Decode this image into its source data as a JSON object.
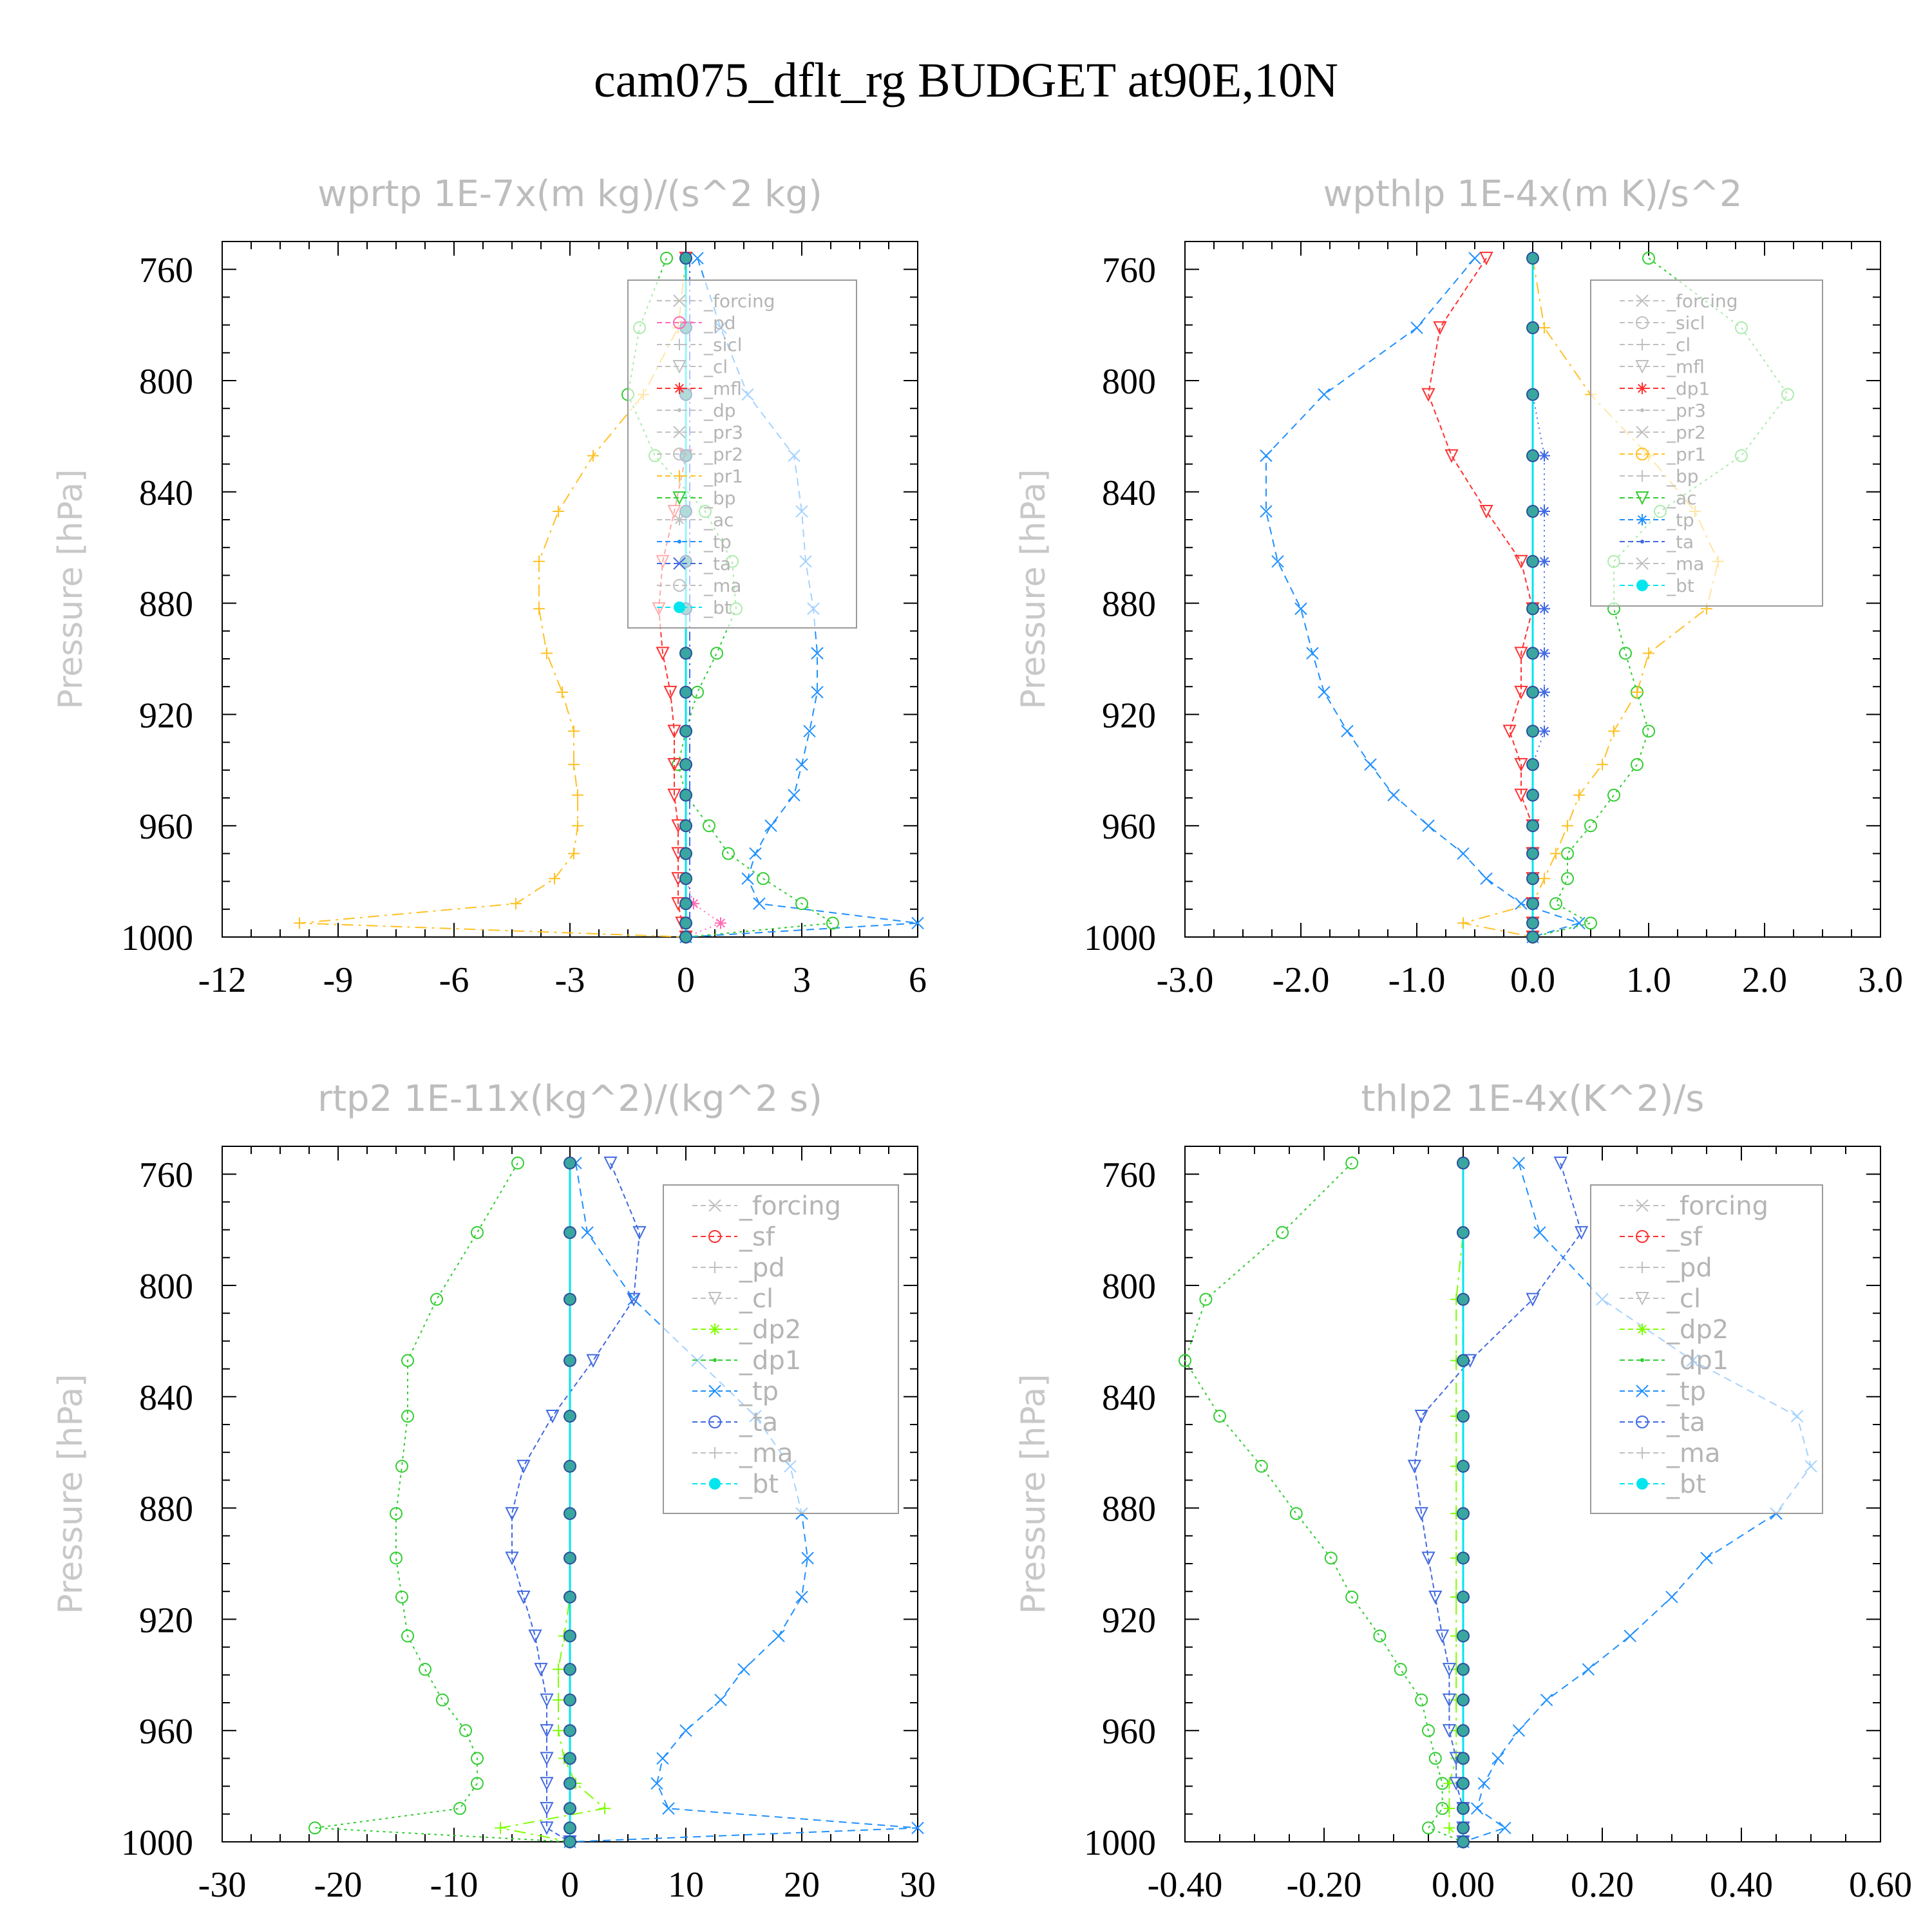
{
  "figure_title": "cam075_dflt_rg  BUDGET at90E,10N",
  "ylabel": "Pressure [hPa]",
  "legend_marker_colors": {
    "bt": "#00e5ee"
  },
  "panels": [
    {
      "title": "wprtp  1E-7x(m kg)/(s^2 kg)",
      "xticks": [
        "-12",
        "-9",
        "-6",
        "-3",
        "0",
        "3",
        "6"
      ],
      "xlim": [
        -12,
        6
      ],
      "legend": [
        "_forcing",
        "_pd",
        "_sicl",
        "_cl",
        "_mfl",
        "_dp",
        "_pr3",
        "_pr2",
        "_pr1",
        "_bp",
        "_ac",
        "_tp",
        "_ta",
        "_ma",
        "_bt"
      ]
    },
    {
      "title": "wpthlp  1E-4x(m K)/s^2",
      "xticks": [
        "-3.0",
        "-2.0",
        "-1.0",
        "0.0",
        "1.0",
        "2.0",
        "3.0"
      ],
      "xlim": [
        -3,
        3
      ],
      "legend": [
        "_forcing",
        "_sicl",
        "_cl",
        "_mfl",
        "_dp1",
        "_pr3",
        "_pr2",
        "_pr1",
        "_bp",
        "_ac",
        "_tp",
        "_ta",
        "_ma",
        "_bt"
      ]
    },
    {
      "title": "rtp2  1E-11x(kg^2)/(kg^2 s)",
      "xticks": [
        "-30",
        "-20",
        "-10",
        "0",
        "10",
        "20",
        "30"
      ],
      "xlim": [
        -30,
        30
      ],
      "legend": [
        "_forcing",
        "_sf",
        "_pd",
        "_cl",
        "_dp2",
        "_dp1",
        "_tp",
        "_ta",
        "_ma",
        "_bt"
      ]
    },
    {
      "title": "thlp2  1E-4x(K^2)/s",
      "xticks": [
        "-0.40",
        "-0.20",
        "0.00",
        "0.20",
        "0.40",
        "0.60"
      ],
      "xlim": [
        -0.4,
        0.6
      ],
      "legend": [
        "_forcing",
        "_sf",
        "_pd",
        "_cl",
        "_dp2",
        "_dp1",
        "_tp",
        "_ta",
        "_ma",
        "_bt"
      ]
    }
  ],
  "chart_data": [
    {
      "type": "line",
      "title": "wprtp  1E-7x(m kg)/(s^2 kg)",
      "ylabel": "Pressure [hPa]",
      "ylim": [
        1000,
        750
      ],
      "xlim": [
        -12,
        6
      ],
      "y_ticks": [
        760,
        800,
        840,
        880,
        920,
        960,
        1000
      ],
      "y": [
        756,
        781,
        805,
        827,
        847,
        865,
        882,
        898,
        912,
        926,
        938,
        949,
        960,
        970,
        979,
        988,
        995,
        1000
      ],
      "series": [
        {
          "name": "_tp",
          "color": "#1e90ff",
          "values": [
            0.3,
            0.9,
            1.6,
            2.8,
            3.0,
            3.1,
            3.3,
            3.4,
            3.4,
            3.2,
            3.0,
            2.8,
            2.2,
            1.8,
            1.6,
            1.9,
            6.0,
            0.0
          ]
        },
        {
          "name": "_bp",
          "color": "#32cd32",
          "values": [
            -0.5,
            -1.2,
            -1.5,
            -0.8,
            0.5,
            1.2,
            1.3,
            0.8,
            0.3,
            0.0,
            -0.2,
            0.0,
            0.6,
            1.1,
            2.0,
            3.0,
            3.8,
            0.0
          ]
        },
        {
          "name": "_pr1",
          "color": "#ffc125",
          "values": [
            0.0,
            -0.2,
            -1.1,
            -2.4,
            -3.3,
            -3.8,
            -3.8,
            -3.6,
            -3.2,
            -2.9,
            -2.9,
            -2.8,
            -2.8,
            -2.9,
            -3.4,
            -4.4,
            -10.0,
            0.0
          ]
        },
        {
          "name": "_mfl",
          "color": "#ff3030",
          "values": [
            0.0,
            0.0,
            0.0,
            0.0,
            -0.3,
            -0.6,
            -0.7,
            -0.6,
            -0.4,
            -0.3,
            -0.3,
            -0.3,
            -0.2,
            -0.2,
            -0.2,
            -0.2,
            -0.1,
            0.0
          ]
        },
        {
          "name": "_pd",
          "color": "#ff69b4",
          "values": [
            0.0,
            0.0,
            0.0,
            0.0,
            0.0,
            0.0,
            0.0,
            0.0,
            0.0,
            0.0,
            0.0,
            0.0,
            0.0,
            0.0,
            0.0,
            0.2,
            0.9,
            0.0
          ]
        },
        {
          "name": "_ta",
          "color": "#4169e1",
          "values": [
            0.1,
            0.1,
            0.1,
            0.1,
            0.1,
            0.1,
            0.1,
            0.1,
            0.1,
            0.1,
            0.1,
            0.1,
            0.1,
            0.1,
            0.1,
            0.1,
            0.1,
            0.0
          ]
        },
        {
          "name": "_bt",
          "color": "#00e5ee",
          "values": [
            0,
            0,
            0,
            0,
            0,
            0,
            0,
            0,
            0,
            0,
            0,
            0,
            0,
            0,
            0,
            0,
            0,
            0
          ]
        }
      ]
    },
    {
      "type": "line",
      "title": "wpthlp  1E-4x(m K)/s^2",
      "ylabel": "Pressure [hPa]",
      "ylim": [
        1000,
        750
      ],
      "xlim": [
        -3,
        3
      ],
      "y_ticks": [
        760,
        800,
        840,
        880,
        920,
        960,
        1000
      ],
      "y": [
        756,
        781,
        805,
        827,
        847,
        865,
        882,
        898,
        912,
        926,
        938,
        949,
        960,
        970,
        979,
        988,
        995,
        1000
      ],
      "series": [
        {
          "name": "_tp",
          "color": "#1e90ff",
          "values": [
            -0.5,
            -1.0,
            -1.8,
            -2.3,
            -2.3,
            -2.2,
            -2.0,
            -1.9,
            -1.8,
            -1.6,
            -1.4,
            -1.2,
            -0.9,
            -0.6,
            -0.4,
            -0.1,
            0.4,
            0.0
          ]
        },
        {
          "name": "_ac",
          "color": "#32cd32",
          "values": [
            1.0,
            1.8,
            2.2,
            1.8,
            1.1,
            0.7,
            0.7,
            0.8,
            0.9,
            1.0,
            0.9,
            0.7,
            0.5,
            0.3,
            0.3,
            0.2,
            0.5,
            0.0
          ]
        },
        {
          "name": "_pr1",
          "color": "#ffc125",
          "values": [
            0.0,
            0.1,
            0.5,
            1.0,
            1.4,
            1.6,
            1.5,
            1.0,
            0.9,
            0.7,
            0.6,
            0.4,
            0.3,
            0.2,
            0.1,
            0.0,
            -0.6,
            0.0
          ]
        },
        {
          "name": "_dp1",
          "color": "#ff3030",
          "values": [
            -0.4,
            -0.8,
            -0.9,
            -0.7,
            -0.4,
            -0.1,
            0.0,
            -0.1,
            -0.1,
            -0.2,
            -0.1,
            -0.1,
            0.0,
            0.0,
            0.0,
            0.0,
            0.0,
            0.0
          ]
        },
        {
          "name": "_ta",
          "color": "#4169e1",
          "values": [
            0.0,
            0.0,
            0.0,
            0.1,
            0.1,
            0.1,
            0.1,
            0.1,
            0.1,
            0.1,
            0.0,
            0.0,
            0.0,
            0.0,
            0.0,
            0.0,
            0.0,
            0.0
          ]
        },
        {
          "name": "_bt",
          "color": "#00e5ee",
          "values": [
            0,
            0,
            0,
            0,
            0,
            0,
            0,
            0,
            0,
            0,
            0,
            0,
            0,
            0,
            0,
            0,
            0,
            0
          ]
        }
      ]
    },
    {
      "type": "line",
      "title": "rtp2  1E-11x(kg^2)/(kg^2 s)",
      "ylabel": "Pressure [hPa]",
      "ylim": [
        1000,
        750
      ],
      "xlim": [
        -30,
        30
      ],
      "y_ticks": [
        760,
        800,
        840,
        880,
        920,
        960,
        1000
      ],
      "y": [
        756,
        781,
        805,
        827,
        847,
        865,
        882,
        898,
        912,
        926,
        938,
        949,
        960,
        970,
        979,
        988,
        995,
        1000
      ],
      "series": [
        {
          "name": "_tp",
          "color": "#1e90ff",
          "values": [
            0.5,
            1.5,
            5.5,
            11.0,
            16.0,
            19.0,
            20.0,
            20.5,
            20.0,
            18.0,
            15.0,
            13.0,
            10.0,
            8.0,
            7.5,
            8.5,
            30.0,
            0.0
          ]
        },
        {
          "name": "_dp1",
          "color": "#32cd32",
          "values": [
            -4.5,
            -8.0,
            -11.5,
            -14.0,
            -14.0,
            -14.5,
            -15.0,
            -15.0,
            -14.5,
            -14.0,
            -12.5,
            -11.0,
            -9.0,
            -8.0,
            -8.0,
            -9.5,
            -22.0,
            0.0
          ]
        },
        {
          "name": "_dp2",
          "color": "#7fff00",
          "values": [
            0.0,
            0.0,
            0.0,
            0.0,
            0.0,
            0.0,
            0.0,
            0.0,
            0.0,
            -0.5,
            -1.0,
            -1.0,
            -1.0,
            -0.5,
            0.5,
            3.0,
            -6.0,
            0.0
          ]
        },
        {
          "name": "_ta",
          "color": "#4169e1",
          "values": [
            3.5,
            6.0,
            5.5,
            2.0,
            -1.5,
            -4.0,
            -5.0,
            -5.0,
            -4.0,
            -3.0,
            -2.5,
            -2.0,
            -2.0,
            -2.0,
            -2.0,
            -2.0,
            -2.0,
            0.0
          ]
        },
        {
          "name": "_sf",
          "color": "#ff3030",
          "values": [
            0.0,
            0.0,
            0.0,
            0.0,
            0.0,
            0.0,
            0.0,
            0.0,
            0.0,
            0.0,
            0.0,
            0.0,
            0.0,
            0.0,
            0.0,
            0.0,
            0.0,
            0.0
          ]
        },
        {
          "name": "_bt",
          "color": "#00e5ee",
          "values": [
            0,
            0,
            0,
            0,
            0,
            0,
            0,
            0,
            0,
            0,
            0,
            0,
            0,
            0,
            0,
            0,
            0,
            0
          ]
        }
      ]
    },
    {
      "type": "line",
      "title": "thlp2  1E-4x(K^2)/s",
      "ylabel": "Pressure [hPa]",
      "ylim": [
        1000,
        750
      ],
      "xlim": [
        -0.4,
        0.6
      ],
      "y_ticks": [
        760,
        800,
        840,
        880,
        920,
        960,
        1000
      ],
      "y": [
        756,
        781,
        805,
        827,
        847,
        865,
        882,
        898,
        912,
        926,
        938,
        949,
        960,
        970,
        979,
        988,
        995,
        1000
      ],
      "series": [
        {
          "name": "_tp",
          "color": "#1e90ff",
          "values": [
            0.08,
            0.11,
            0.2,
            0.33,
            0.48,
            0.5,
            0.45,
            0.35,
            0.3,
            0.24,
            0.18,
            0.12,
            0.08,
            0.05,
            0.03,
            0.02,
            0.06,
            0.0
          ]
        },
        {
          "name": "_dp1",
          "color": "#32cd32",
          "values": [
            -0.16,
            -0.26,
            -0.37,
            -0.4,
            -0.35,
            -0.29,
            -0.24,
            -0.19,
            -0.16,
            -0.12,
            -0.09,
            -0.06,
            -0.05,
            -0.04,
            -0.03,
            -0.03,
            -0.05,
            0.0
          ]
        },
        {
          "name": "_dp2",
          "color": "#7fff00",
          "values": [
            0.0,
            0.0,
            -0.01,
            -0.01,
            -0.01,
            -0.01,
            -0.01,
            -0.01,
            -0.01,
            -0.01,
            -0.01,
            -0.01,
            -0.01,
            -0.01,
            -0.02,
            -0.02,
            -0.02,
            0.0
          ]
        },
        {
          "name": "_ta",
          "color": "#4169e1",
          "values": [
            0.14,
            0.17,
            0.1,
            0.01,
            -0.06,
            -0.07,
            -0.06,
            -0.05,
            -0.04,
            -0.03,
            -0.02,
            -0.02,
            -0.02,
            -0.01,
            -0.01,
            0.0,
            0.0,
            0.0
          ]
        },
        {
          "name": "_sf",
          "color": "#ff3030",
          "values": [
            0.0,
            0.0,
            0.0,
            0.0,
            0.0,
            0.0,
            0.0,
            0.0,
            0.0,
            0.0,
            0.0,
            0.0,
            0.0,
            0.0,
            0.0,
            0.0,
            0.0,
            0.0
          ]
        },
        {
          "name": "_bt",
          "color": "#00e5ee",
          "values": [
            0,
            0,
            0,
            0,
            0,
            0,
            0,
            0,
            0,
            0,
            0,
            0,
            0,
            0,
            0,
            0,
            0,
            0
          ]
        }
      ]
    }
  ]
}
